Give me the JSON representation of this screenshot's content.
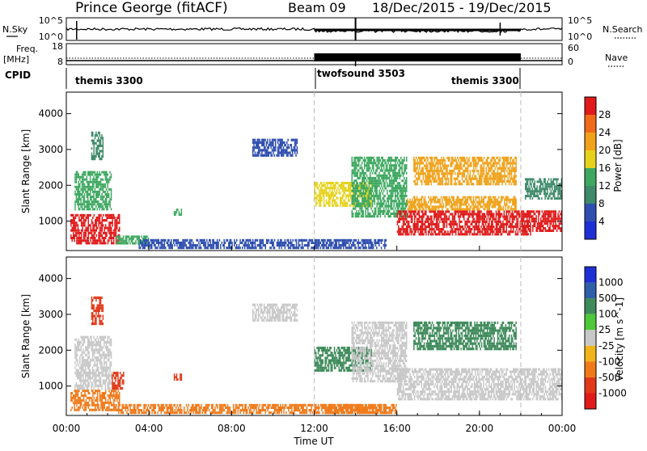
{
  "header": {
    "station": "Prince George (fitACF)",
    "beam": "Beam 09",
    "date_range": "18/Dec/2015 - 19/Dec/2015"
  },
  "panel_labels": {
    "nsky": "N.Sky",
    "nsearch": "N.Search",
    "freq_line1": "Freq.",
    "freq_line2": "[MHz]",
    "nave": "Nave",
    "cpid": "CPID"
  },
  "noise_panel": {
    "left_ticks": [
      "10^5",
      "10^0"
    ],
    "right_ticks": [
      "10^5",
      "10^0"
    ]
  },
  "freq_panel": {
    "left_ticks": [
      "18",
      "8"
    ],
    "right_ticks": [
      "60",
      "0"
    ]
  },
  "cpid_blocks": [
    {
      "label": "themis 3300",
      "start_h": 0,
      "end_h": 12
    },
    {
      "label": "twofsound 3503",
      "start_h": 12,
      "end_h": 22
    },
    {
      "label": "themis 3300",
      "start_h": 22,
      "end_h": 24
    }
  ],
  "time_axis": {
    "label": "Time UT",
    "ticks": [
      "00:00",
      "04:00",
      "08:00",
      "12:00",
      "16:00",
      "20:00",
      "00:00"
    ]
  },
  "power_colorbar": {
    "label": "Power [dB]",
    "ticks": [
      "4",
      "8",
      "12",
      "16",
      "20",
      "24",
      "28"
    ],
    "colors": [
      "#1f2fd6",
      "#2f4fb0",
      "#3e8a6a",
      "#3ea860",
      "#e6d21a",
      "#f0a21a",
      "#f06a1a",
      "#e01a1a"
    ]
  },
  "velocity_colorbar": {
    "label": "Velocity [m s^-1]",
    "ticks": [
      "1000",
      "500",
      "100",
      "25",
      "-25",
      "-100",
      "-500",
      "-1000"
    ],
    "colors": [
      "#1f2fd6",
      "#2f5fa8",
      "#3e8a5a",
      "#4ec83a",
      "#c8c8c8",
      "#f0b41a",
      "#f07a1a",
      "#e03a1a",
      "#e01a1a"
    ]
  },
  "chart_data": [
    {
      "type": "heatmap",
      "title": "Prince George (fitACF)",
      "ylabel": "Slant Range [km]",
      "xlabel": "",
      "ylim": [
        180,
        4600
      ],
      "xlim_hours": [
        0,
        24
      ],
      "y_ticks": [
        1000,
        2000,
        3000,
        4000
      ],
      "quantity": "Power [dB]",
      "regions": [
        {
          "h0": 0.2,
          "h1": 2.6,
          "r0": 350,
          "r1": 1200,
          "level": 28
        },
        {
          "h0": 0.4,
          "h1": 2.2,
          "r0": 1300,
          "r1": 2400,
          "level": 12
        },
        {
          "h0": 1.2,
          "h1": 1.8,
          "r0": 2700,
          "r1": 3500,
          "level": 10
        },
        {
          "h0": 2.4,
          "h1": 4.0,
          "r0": 350,
          "r1": 600,
          "level": 14
        },
        {
          "h0": 3.5,
          "h1": 15.5,
          "r0": 220,
          "r1": 500,
          "level": 6
        },
        {
          "h0": 5.2,
          "h1": 5.6,
          "r0": 1150,
          "r1": 1350,
          "level": 14
        },
        {
          "h0": 9.0,
          "h1": 11.2,
          "r0": 2800,
          "r1": 3300,
          "level": 6
        },
        {
          "h0": 12.0,
          "h1": 14.8,
          "r0": 1400,
          "r1": 2100,
          "level": 18
        },
        {
          "h0": 13.8,
          "h1": 16.5,
          "r0": 1100,
          "r1": 2800,
          "level": 14
        },
        {
          "h0": 16.0,
          "h1": 22.5,
          "r0": 600,
          "r1": 1300,
          "level": 27
        },
        {
          "h0": 16.5,
          "h1": 21.8,
          "r0": 1300,
          "r1": 1700,
          "level": 20
        },
        {
          "h0": 16.8,
          "h1": 21.8,
          "r0": 2000,
          "r1": 2800,
          "level": 22
        },
        {
          "h0": 22.0,
          "h1": 24.0,
          "r0": 700,
          "r1": 1300,
          "level": 27
        },
        {
          "h0": 22.2,
          "h1": 24.0,
          "r0": 1600,
          "r1": 2200,
          "level": 8
        }
      ]
    },
    {
      "type": "heatmap",
      "ylabel": "Slant Range [km]",
      "xlabel": "Time UT",
      "ylim": [
        180,
        4600
      ],
      "xlim_hours": [
        0,
        24
      ],
      "y_ticks": [
        1000,
        2000,
        3000,
        4000
      ],
      "quantity": "Velocity [m s^-1]",
      "regions": [
        {
          "h0": 0.2,
          "h1": 2.6,
          "r0": 300,
          "r1": 900,
          "level": -100
        },
        {
          "h0": 0.4,
          "h1": 2.2,
          "r0": 900,
          "r1": 2400,
          "level": 0
        },
        {
          "h0": 1.2,
          "h1": 1.8,
          "r0": 2700,
          "r1": 3500,
          "level": -500
        },
        {
          "h0": 2.2,
          "h1": 2.8,
          "r0": 900,
          "r1": 1400,
          "level": -500
        },
        {
          "h0": 2.4,
          "h1": 15.5,
          "r0": 220,
          "r1": 500,
          "level": -100
        },
        {
          "h0": 5.2,
          "h1": 5.6,
          "r0": 1150,
          "r1": 1350,
          "level": -500
        },
        {
          "h0": 9.0,
          "h1": 11.2,
          "r0": 2800,
          "r1": 3300,
          "level": 0
        },
        {
          "h0": 12.0,
          "h1": 14.8,
          "r0": 1400,
          "r1": 2100,
          "level": 100
        },
        {
          "h0": 13.8,
          "h1": 16.5,
          "r0": 1100,
          "r1": 2800,
          "level": 0
        },
        {
          "h0": 16.0,
          "h1": 24.0,
          "r0": 600,
          "r1": 1500,
          "level": 0
        },
        {
          "h0": 16.8,
          "h1": 21.8,
          "r0": 2000,
          "r1": 2800,
          "level": 100
        },
        {
          "h0": 12.5,
          "h1": 16.0,
          "r0": 220,
          "r1": 500,
          "level": -100
        }
      ]
    }
  ]
}
